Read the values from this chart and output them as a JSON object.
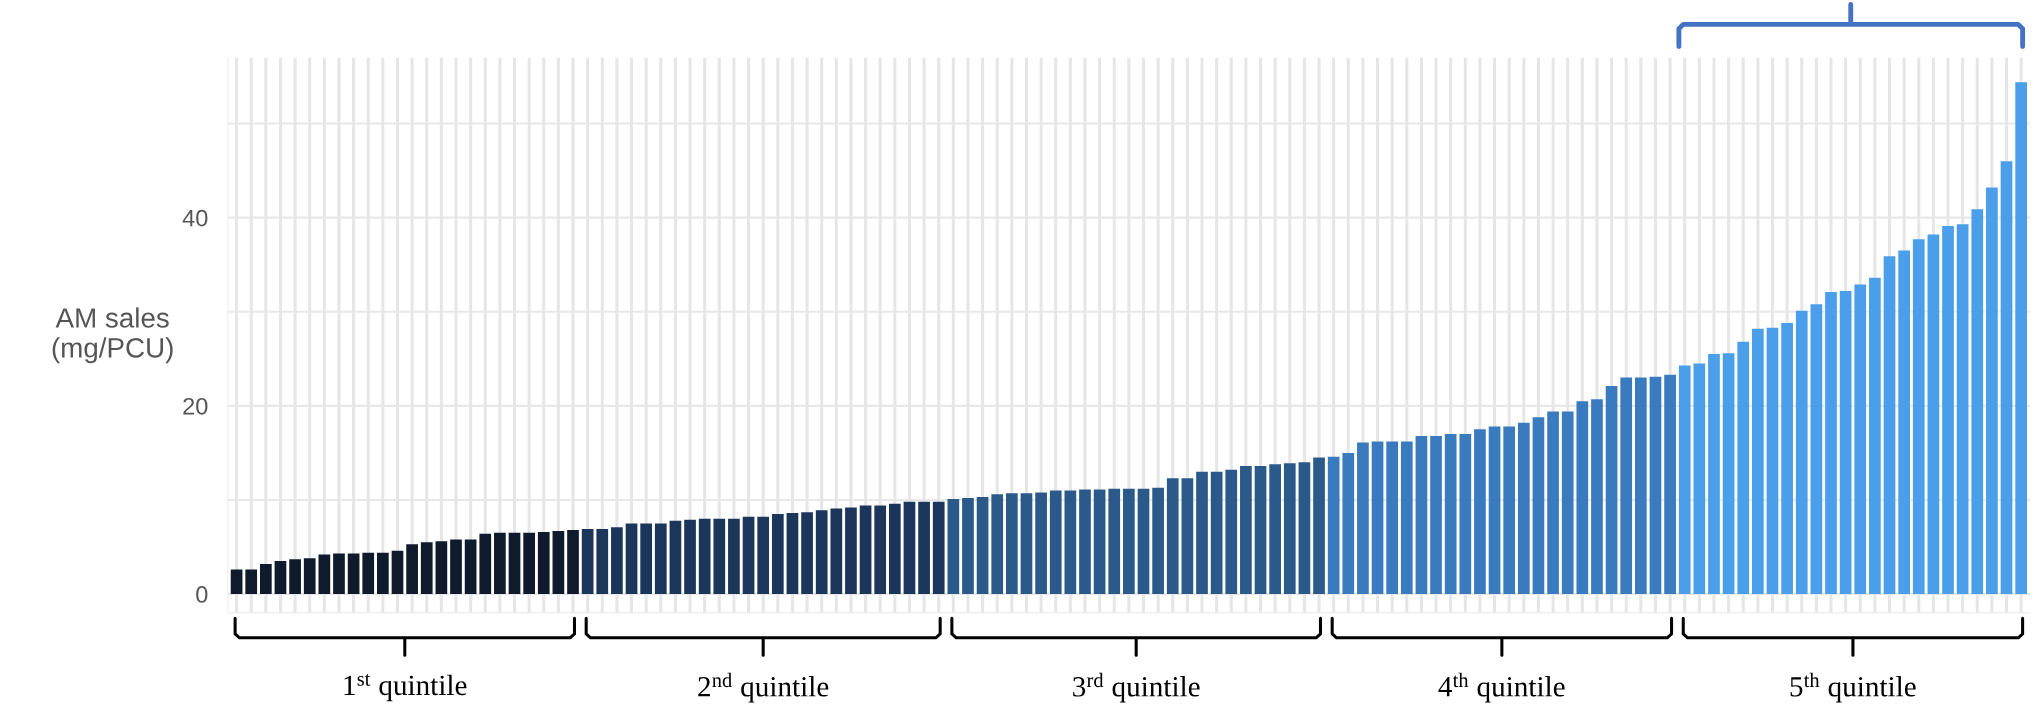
{
  "chart_data": {
    "type": "bar",
    "ylabel": "AM sales\n(mg/PCU)",
    "categories": [
      null,
      null,
      null,
      null,
      null,
      null,
      null,
      null,
      null,
      null,
      null,
      null,
      null,
      null,
      null,
      null,
      null,
      null,
      null,
      null,
      null,
      null,
      null,
      null,
      null,
      null,
      null,
      null,
      null,
      null,
      null,
      null,
      null,
      null,
      null,
      null,
      null,
      null,
      null,
      null,
      null,
      null,
      null,
      null,
      null,
      null,
      null,
      null,
      null,
      null,
      null,
      null,
      null,
      null,
      null,
      null,
      null,
      null,
      null,
      null,
      null,
      null,
      null,
      null,
      null,
      null,
      null,
      null,
      null,
      null,
      null,
      null,
      null,
      null,
      null,
      null,
      null,
      null,
      null,
      null,
      null,
      null,
      null,
      null,
      null,
      null,
      null,
      null,
      null,
      null,
      null,
      null,
      null,
      null,
      null,
      null,
      null,
      null,
      null,
      null,
      null,
      null,
      null,
      null,
      null,
      null,
      null,
      null,
      null,
      null,
      null,
      null,
      null,
      null,
      null,
      null,
      null,
      null,
      null,
      null,
      null,
      null,
      null
    ],
    "values": [
      2.6,
      2.6,
      3.2,
      3.5,
      3.7,
      3.8,
      4.2,
      4.3,
      4.3,
      4.4,
      4.4,
      4.6,
      5.3,
      5.5,
      5.6,
      5.8,
      5.8,
      6.4,
      6.5,
      6.5,
      6.5,
      6.6,
      6.7,
      6.8,
      6.9,
      6.9,
      7.1,
      7.5,
      7.5,
      7.5,
      7.8,
      7.9,
      8.0,
      8.0,
      8.0,
      8.2,
      8.2,
      8.5,
      8.6,
      8.7,
      8.9,
      9.1,
      9.2,
      9.4,
      9.4,
      9.6,
      9.8,
      9.8,
      9.8,
      10.1,
      10.2,
      10.3,
      10.6,
      10.7,
      10.7,
      10.8,
      11.0,
      11.0,
      11.1,
      11.1,
      11.2,
      11.2,
      11.2,
      11.3,
      12.3,
      12.3,
      13.0,
      13.0,
      13.2,
      13.6,
      13.6,
      13.8,
      13.9,
      14.0,
      14.5,
      14.6,
      15.0,
      16.1,
      16.2,
      16.2,
      16.2,
      16.8,
      16.8,
      17.0,
      17.0,
      17.5,
      17.8,
      17.8,
      18.2,
      18.8,
      19.4,
      19.4,
      20.5,
      20.7,
      22.1,
      23.0,
      23.0,
      23.1,
      23.3,
      24.3,
      24.5,
      25.5,
      25.6,
      26.8,
      28.2,
      28.3,
      28.8,
      30.1,
      30.8,
      32.1,
      32.2,
      32.9,
      33.6,
      35.9,
      36.5,
      37.7,
      38.2,
      39.1,
      39.3,
      40.9,
      43.2,
      46.0,
      54.4
    ],
    "colors": [
      "#0f1b2d",
      "#0f1b2d",
      "#0f1b2d",
      "#0f1b2d",
      "#0f1b2d",
      "#0f1b2d",
      "#0f1b2d",
      "#0f1b2d",
      "#0f1b2d",
      "#0f1b2d",
      "#0f1b2d",
      "#0f1b2d",
      "#0f1b2d",
      "#0f1b2d",
      "#0f1b2d",
      "#0f1b2d",
      "#0f1b2d",
      "#0f1b2d",
      "#0f1b2d",
      "#0f1b2d",
      "#0f1b2d",
      "#0f1b2d",
      "#0f1b2d",
      "#0f1b2d",
      "#1b365a",
      "#1b365a",
      "#1b365a",
      "#1b365a",
      "#1b365a",
      "#1b365a",
      "#1b365a",
      "#1b365a",
      "#1b365a",
      "#1b365a",
      "#1b365a",
      "#1b365a",
      "#1b365a",
      "#1b365a",
      "#1b365a",
      "#1b365a",
      "#1b365a",
      "#1b365a",
      "#1b365a",
      "#1b365a",
      "#1b365a",
      "#1b365a",
      "#1b365a",
      "#1b365a",
      "#1b365a",
      "#2b5a8a",
      "#2b5a8a",
      "#2b5a8a",
      "#2b5a8a",
      "#2b5a8a",
      "#2b5a8a",
      "#2b5a8a",
      "#2b5a8a",
      "#2b5a8a",
      "#2b5a8a",
      "#2b5a8a",
      "#2b5a8a",
      "#2b5a8a",
      "#2b5a8a",
      "#2b5a8a",
      "#2b5a8a",
      "#2b5a8a",
      "#2b5a8a",
      "#2b5a8a",
      "#2b5a8a",
      "#2b5a8a",
      "#2b5a8a",
      "#2b5a8a",
      "#2b5a8a",
      "#2b5a8a",
      "#2b5a8a",
      "#3a7bbf",
      "#3a7bbf",
      "#3a7bbf",
      "#3a7bbf",
      "#3a7bbf",
      "#3a7bbf",
      "#3a7bbf",
      "#3a7bbf",
      "#3a7bbf",
      "#3a7bbf",
      "#3a7bbf",
      "#3a7bbf",
      "#3a7bbf",
      "#3a7bbf",
      "#3a7bbf",
      "#3a7bbf",
      "#3a7bbf",
      "#3a7bbf",
      "#3a7bbf",
      "#3a7bbf",
      "#3a7bbf",
      "#3a7bbf",
      "#3a7bbf",
      "#3a7bbf",
      "#4a9eea",
      "#4a9eea",
      "#4a9eea",
      "#4a9eea",
      "#4a9eea",
      "#4a9eea",
      "#4a9eea",
      "#4a9eea",
      "#4a9eea",
      "#4a9eea",
      "#4a9eea",
      "#4a9eea",
      "#4a9eea",
      "#4a9eea",
      "#4a9eea",
      "#4a9eea",
      "#4a9eea",
      "#4a9eea",
      "#4a9eea",
      "#4a9eea",
      "#4a9eea",
      "#4a9eea",
      "#4a9eea",
      "#4a9eea"
    ],
    "ylim": [
      -2,
      57
    ],
    "yticks": [
      0,
      {
        "value": 10,
        "label": null
      },
      20,
      {
        "value": 30,
        "label": null
      },
      40,
      {
        "value": 50,
        "label": null
      }
    ],
    "grid": true,
    "tick_labels": "y",
    "annotations": [
      "1$^{st}$ quintile",
      "2$^{nd}$ quintile",
      "3$^{rd}$ quintile",
      "4$^{th}$ quintile",
      "5$^{th}$ quintile"
    ]
  }
}
